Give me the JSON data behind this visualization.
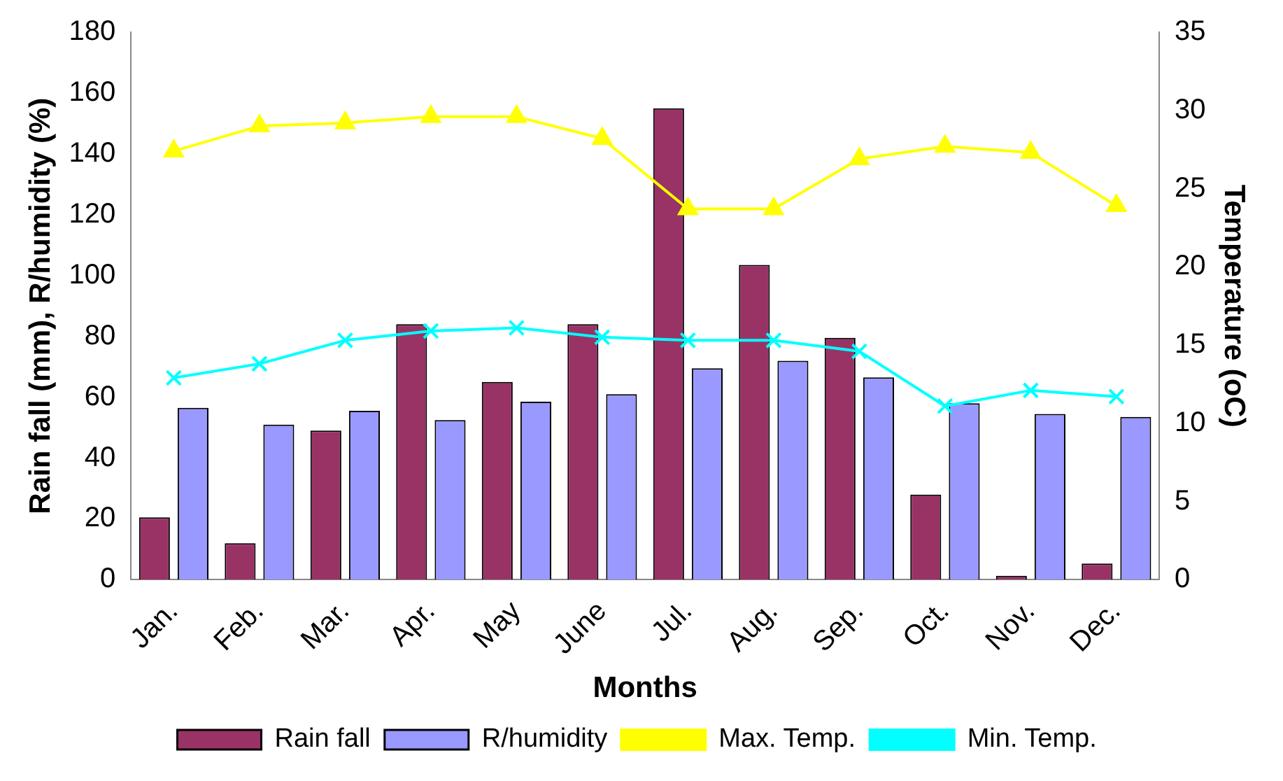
{
  "chart_data": {
    "type": "bar",
    "xlabel": "Months",
    "ylabel": "Rain fall (mm), R/humidity (%)",
    "y2label": "Temperature (oC)",
    "categories": [
      "Jan.",
      "Feb.",
      "Mar.",
      "Apr.",
      "May",
      "June",
      "Jul.",
      "Aug.",
      "Sep.",
      "Oct.",
      "Nov.",
      "Dec."
    ],
    "series": [
      {
        "name": "Rain fall",
        "color": "#993366",
        "values": [
          20.5,
          12,
          49,
          84,
          65,
          84,
          155,
          103.5,
          79.5,
          28,
          1.3,
          5.3
        ]
      },
      {
        "name": "R/humidity",
        "color": "#9999ff",
        "values": [
          56.5,
          51,
          55.5,
          52.5,
          58.5,
          61,
          69.5,
          72,
          66.5,
          58,
          54.5,
          53.5
        ]
      },
      {
        "name": "Max. Temp.",
        "type": "line",
        "axis": "y2",
        "color": "#ffff00",
        "marker": "triangle",
        "values": [
          27.4,
          29,
          29.2,
          29.6,
          29.6,
          28.2,
          23.7,
          23.7,
          26.9,
          27.7,
          27.3,
          23.9
        ]
      },
      {
        "name": "Min. Temp.",
        "type": "line",
        "axis": "y2",
        "color": "#00ffff",
        "marker": "cross",
        "values": [
          12.9,
          13.8,
          15.3,
          15.9,
          16.1,
          15.5,
          15.3,
          15.3,
          14.6,
          11.1,
          12.1,
          11.7
        ]
      }
    ],
    "ylim": [
      0,
      180
    ],
    "yticks": [
      0,
      20,
      40,
      60,
      80,
      100,
      120,
      140,
      160,
      180
    ],
    "y2lim": [
      0,
      35
    ],
    "y2ticks": [
      0,
      5,
      10,
      15,
      20,
      25,
      30,
      35
    ],
    "grid": false,
    "legend": "bottom"
  }
}
